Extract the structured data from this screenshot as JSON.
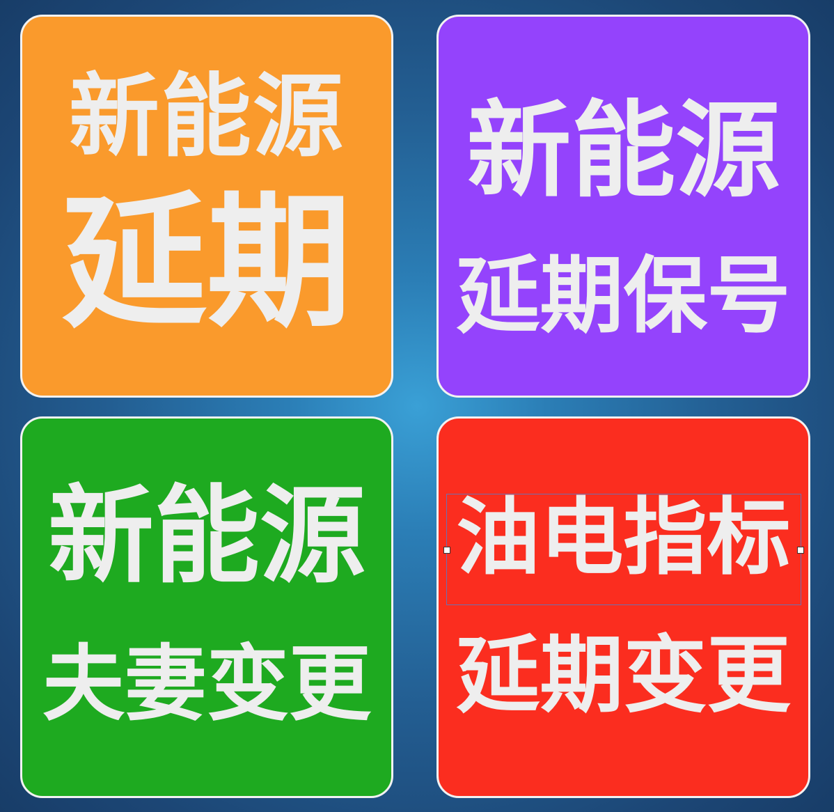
{
  "colors": {
    "background_center": "#3aa0d6",
    "background_edge": "#183d68",
    "text": "#eeeeee",
    "tile_border": "#f2f2f2",
    "selection_border": "#6d6fb0"
  },
  "tiles": [
    {
      "color": "#fa9a2c",
      "line1": "新能源",
      "line2": "延期"
    },
    {
      "color": "#9443fc",
      "line1": "新能源",
      "line2": "延期保号"
    },
    {
      "color": "#1eaa20",
      "line1": "新能源",
      "line2": "夫妻变更"
    },
    {
      "color": "#fb2d1f",
      "line1": "油电指标",
      "line2": "延期变更"
    }
  ]
}
